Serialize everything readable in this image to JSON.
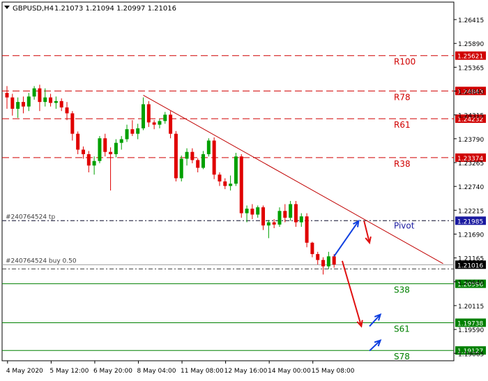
{
  "header": {
    "symbol_timeframe": "GBPUSD,H4",
    "ohlc": "1.21073 1.21094 1.20997 1.21016"
  },
  "colors": {
    "bull": "#00a000",
    "bear": "#e00000",
    "resistance": "#d00000",
    "pivot": "#1a1aa0",
    "support": "#008000",
    "trendline": "#c00000",
    "arrow_up": "#1040e0",
    "arrow_down": "#e01010",
    "axis_text": "#000000"
  },
  "chart_data": {
    "type": "candlestick",
    "y_range": [
      1.189,
      1.268
    ],
    "price_ticks": [
      "1.26415",
      "1.25890",
      "1.25365",
      "1.24840",
      "1.24315",
      "1.23790",
      "1.23265",
      "1.22740",
      "1.22215",
      "1.21690",
      "1.21165",
      "1.20640",
      "1.20115",
      "1.19590",
      "1.19065"
    ],
    "time_labels": [
      {
        "label": "4 May 2020",
        "bar": 1
      },
      {
        "label": "5 May 12:00",
        "bar": 9
      },
      {
        "label": "6 May 20:00",
        "bar": 17
      },
      {
        "label": "8 May 04:00",
        "bar": 25
      },
      {
        "label": "11 May 08:00",
        "bar": 33
      },
      {
        "label": "12 May 16:00",
        "bar": 41
      },
      {
        "label": "14 May 00:00",
        "bar": 49
      },
      {
        "label": "15 May 08:00",
        "bar": 57
      }
    ],
    "candles": [
      [
        1.248,
        1.2495,
        1.2445,
        1.247
      ],
      [
        1.247,
        1.2478,
        1.243,
        1.2445
      ],
      [
        1.2445,
        1.247,
        1.2425,
        1.246
      ],
      [
        1.246,
        1.2472,
        1.2435,
        1.245
      ],
      [
        1.245,
        1.248,
        1.244,
        1.2472
      ],
      [
        1.2472,
        1.2495,
        1.2465,
        1.249
      ],
      [
        1.249,
        1.2498,
        1.244,
        1.246
      ],
      [
        1.246,
        1.249,
        1.245,
        1.247
      ],
      [
        1.247,
        1.2478,
        1.245,
        1.2458
      ],
      [
        1.2458,
        1.2472,
        1.2445,
        1.2462
      ],
      [
        1.2462,
        1.2468,
        1.244,
        1.2448
      ],
      [
        1.2448,
        1.246,
        1.242,
        1.2435
      ],
      [
        1.2435,
        1.244,
        1.2375,
        1.239
      ],
      [
        1.239,
        1.2395,
        1.2345,
        1.2355
      ],
      [
        1.2355,
        1.2362,
        1.2335,
        1.2345
      ],
      [
        1.2345,
        1.2352,
        1.2305,
        1.232
      ],
      [
        1.232,
        1.234,
        1.23,
        1.233
      ],
      [
        1.233,
        1.2385,
        1.2325,
        1.238
      ],
      [
        1.238,
        1.239,
        1.234,
        1.235
      ],
      [
        1.235,
        1.236,
        1.2265,
        1.2345
      ],
      [
        1.2345,
        1.2378,
        1.2338,
        1.237
      ],
      [
        1.237,
        1.2385,
        1.2355,
        1.2378
      ],
      [
        1.2378,
        1.241,
        1.2372,
        1.24
      ],
      [
        1.24,
        1.242,
        1.2385,
        1.239
      ],
      [
        1.239,
        1.2412,
        1.2378,
        1.2402
      ],
      [
        1.2402,
        1.247,
        1.2398,
        1.2455
      ],
      [
        1.2455,
        1.2462,
        1.2405,
        1.2415
      ],
      [
        1.2415,
        1.242,
        1.24,
        1.241
      ],
      [
        1.241,
        1.2422,
        1.2402,
        1.2418
      ],
      [
        1.2418,
        1.2438,
        1.2412,
        1.2432
      ],
      [
        1.2432,
        1.244,
        1.238,
        1.239
      ],
      [
        1.239,
        1.2396,
        1.2285,
        1.2292
      ],
      [
        1.2292,
        1.2342,
        1.2285,
        1.2335
      ],
      [
        1.2335,
        1.2358,
        1.232,
        1.235
      ],
      [
        1.235,
        1.2358,
        1.2325,
        1.2332
      ],
      [
        1.2332,
        1.2336,
        1.2305,
        1.2315
      ],
      [
        1.2315,
        1.2352,
        1.2312,
        1.2345
      ],
      [
        1.2345,
        1.238,
        1.234,
        1.2375
      ],
      [
        1.2375,
        1.2382,
        1.229,
        1.23
      ],
      [
        1.23,
        1.2305,
        1.2275,
        1.2285
      ],
      [
        1.2285,
        1.2292,
        1.2268,
        1.2275
      ],
      [
        1.2275,
        1.2298,
        1.2265,
        1.228
      ],
      [
        1.228,
        1.2348,
        1.2275,
        1.234
      ],
      [
        1.234,
        1.2345,
        1.2205,
        1.2215
      ],
      [
        1.2215,
        1.2232,
        1.2195,
        1.2225
      ],
      [
        1.2225,
        1.2235,
        1.2202,
        1.2212
      ],
      [
        1.2212,
        1.2232,
        1.2205,
        1.2228
      ],
      [
        1.2228,
        1.2232,
        1.2178,
        1.2188
      ],
      [
        1.2188,
        1.22,
        1.216,
        1.2195
      ],
      [
        1.2195,
        1.2202,
        1.2182,
        1.219
      ],
      [
        1.219,
        1.2228,
        1.2185,
        1.222
      ],
      [
        1.222,
        1.2235,
        1.2195,
        1.2205
      ],
      [
        1.2205,
        1.2242,
        1.2198,
        1.2235
      ],
      [
        1.2235,
        1.2242,
        1.2185,
        1.2195
      ],
      [
        1.2195,
        1.2215,
        1.2185,
        1.2208
      ],
      [
        1.2208,
        1.2215,
        1.214,
        1.215
      ],
      [
        1.215,
        1.2152,
        1.2118,
        1.2125
      ],
      [
        1.2125,
        1.213,
        1.2102,
        1.2112
      ],
      [
        1.2112,
        1.2118,
        1.208,
        1.2098
      ],
      [
        1.2098,
        1.213,
        1.2092,
        1.212
      ],
      [
        1.212,
        1.2125,
        1.2095,
        1.2102
      ]
    ],
    "levels": [
      {
        "label": "R100",
        "value": 1.25621,
        "price_text": "1.25621",
        "kind": "resistance"
      },
      {
        "label": "R78",
        "value": 1.24843,
        "price_text": "1.24843",
        "kind": "resistance"
      },
      {
        "label": "R61",
        "value": 1.24232,
        "price_text": "1.24232",
        "kind": "resistance"
      },
      {
        "label": "R38",
        "value": 1.23374,
        "price_text": "1.23374",
        "kind": "resistance"
      },
      {
        "label": "Pivot",
        "value": 1.21985,
        "price_text": "1.21985",
        "kind": "pivot"
      },
      {
        "label": "S38",
        "value": 1.20596,
        "price_text": "1.20596",
        "kind": "support"
      },
      {
        "label": "S61",
        "value": 1.19738,
        "price_text": "1.19738",
        "kind": "support"
      },
      {
        "label": "S78",
        "value": 1.19127,
        "price_text": "1.19127",
        "kind": "support"
      }
    ],
    "current_price": {
      "value": 1.21016,
      "price_text": "1.21016"
    },
    "order_lines": [
      {
        "text": "#240764524 tp",
        "value": 1.21985
      },
      {
        "text": "#240764524 buy 0.50",
        "value": 1.21016
      }
    ],
    "trendline": {
      "from": {
        "bar": 25,
        "price": 1.2475
      },
      "to": {
        "bar": 80,
        "price": 1.2104
      }
    },
    "scenario_arrows": [
      {
        "direction": "up",
        "from": {
          "bar": 60,
          "price": 1.212
        },
        "to": {
          "bar": 64.5,
          "price": 1.2198
        }
      },
      {
        "direction": "down",
        "from": {
          "bar": 65.5,
          "price": 1.2198
        },
        "to": {
          "bar": 66.5,
          "price": 1.215
        }
      },
      {
        "direction": "down",
        "from": {
          "bar": 61.5,
          "price": 1.211
        },
        "to": {
          "bar": 65,
          "price": 1.1966
        }
      },
      {
        "direction": "up",
        "from": {
          "bar": 66.5,
          "price": 1.1966
        },
        "to": {
          "bar": 68.5,
          "price": 1.1992
        }
      },
      {
        "direction": "up",
        "from": {
          "bar": 66.5,
          "price": 1.1912
        },
        "to": {
          "bar": 68.5,
          "price": 1.1935
        }
      }
    ]
  }
}
